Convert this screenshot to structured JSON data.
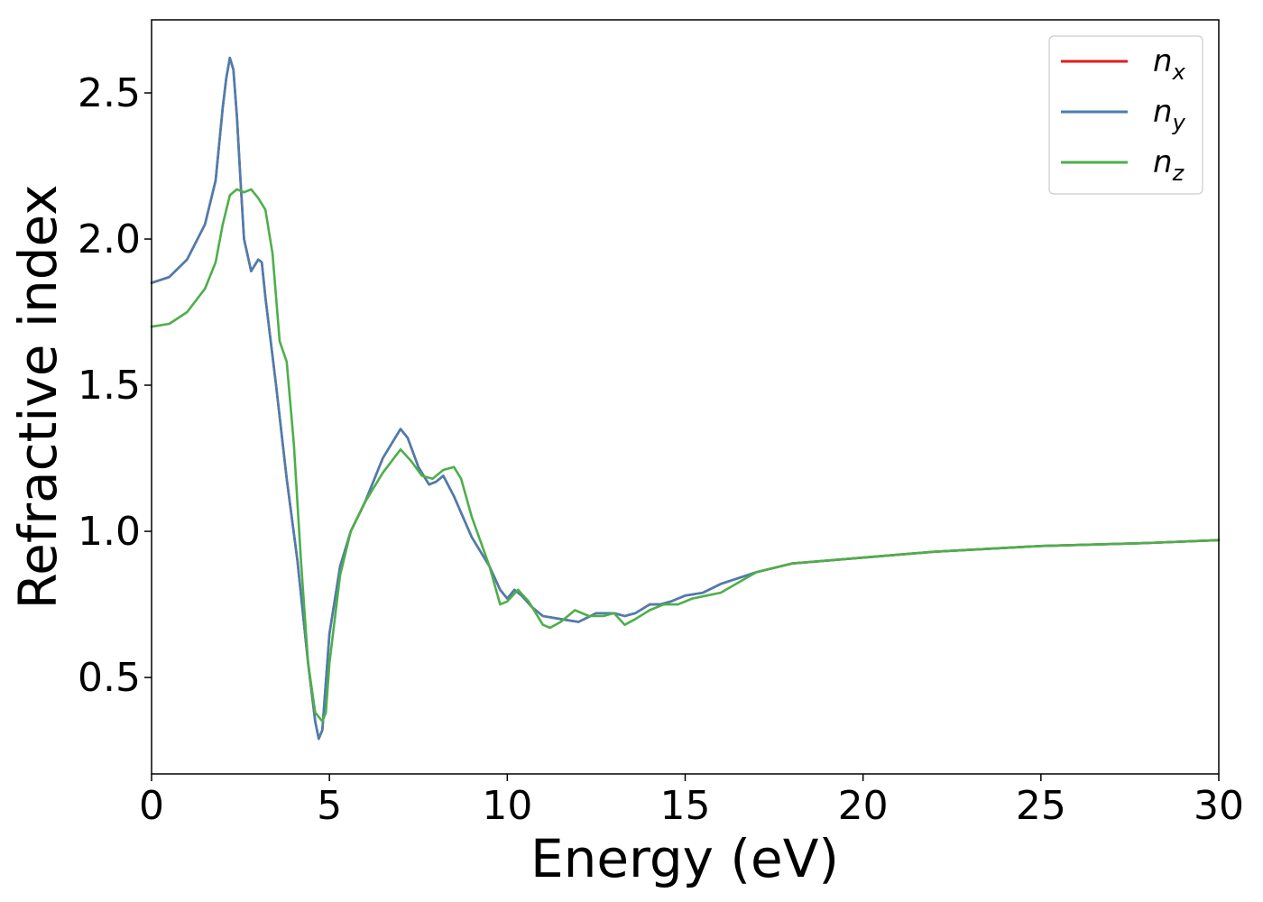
{
  "chart_data": {
    "type": "line",
    "xlabel": "Energy (eV)",
    "ylabel": "Refractive index",
    "xlim": [
      0,
      30
    ],
    "ylim": [
      0.17,
      2.75
    ],
    "xticks": [
      0,
      5,
      10,
      15,
      20,
      25,
      30
    ],
    "xtick_labels": [
      "0",
      "5",
      "10",
      "15",
      "20",
      "25",
      "30"
    ],
    "yticks": [
      0.5,
      1.0,
      1.5,
      2.0,
      2.5
    ],
    "ytick_labels": [
      "0.5",
      "1.0",
      "1.5",
      "2.0",
      "2.5"
    ],
    "grid": false,
    "legend_position": "top-right",
    "series": [
      {
        "name": "n_x",
        "legend_base": "n",
        "legend_sub": "x",
        "color": "#e41a1c",
        "x": [
          0,
          0.5,
          1.0,
          1.5,
          1.8,
          2.0,
          2.1,
          2.2,
          2.3,
          2.4,
          2.5,
          2.6,
          2.8,
          3.0,
          3.1,
          3.2,
          3.5,
          3.8,
          4.1,
          4.4,
          4.6,
          4.7,
          4.8,
          5.0,
          5.3,
          5.6,
          6.0,
          6.5,
          7.0,
          7.2,
          7.5,
          7.8,
          8.0,
          8.2,
          8.5,
          9.0,
          9.5,
          9.8,
          10.0,
          10.2,
          10.4,
          10.7,
          11.0,
          11.5,
          12.0,
          12.5,
          13.0,
          13.3,
          13.6,
          14.0,
          14.3,
          14.6,
          15.0,
          15.5,
          16.0,
          17.0,
          18.0,
          20.0,
          22.0,
          25.0,
          28.0,
          30.0
        ],
        "y": [
          1.85,
          1.87,
          1.93,
          2.05,
          2.2,
          2.45,
          2.55,
          2.62,
          2.58,
          2.42,
          2.2,
          2.0,
          1.89,
          1.93,
          1.92,
          1.8,
          1.5,
          1.18,
          0.9,
          0.55,
          0.35,
          0.29,
          0.32,
          0.65,
          0.88,
          1.0,
          1.1,
          1.25,
          1.35,
          1.32,
          1.22,
          1.16,
          1.17,
          1.19,
          1.12,
          0.98,
          0.88,
          0.8,
          0.77,
          0.8,
          0.78,
          0.74,
          0.71,
          0.7,
          0.69,
          0.72,
          0.72,
          0.71,
          0.72,
          0.75,
          0.75,
          0.76,
          0.78,
          0.79,
          0.82,
          0.86,
          0.89,
          0.91,
          0.93,
          0.95,
          0.96,
          0.97
        ]
      },
      {
        "name": "n_y",
        "legend_base": "n",
        "legend_sub": "y",
        "color": "#4a7eb0",
        "x": [
          0,
          0.5,
          1.0,
          1.5,
          1.8,
          2.0,
          2.1,
          2.2,
          2.3,
          2.4,
          2.5,
          2.6,
          2.8,
          3.0,
          3.1,
          3.2,
          3.5,
          3.8,
          4.1,
          4.4,
          4.6,
          4.7,
          4.8,
          5.0,
          5.3,
          5.6,
          6.0,
          6.5,
          7.0,
          7.2,
          7.5,
          7.8,
          8.0,
          8.2,
          8.5,
          9.0,
          9.5,
          9.8,
          10.0,
          10.2,
          10.4,
          10.7,
          11.0,
          11.5,
          12.0,
          12.5,
          13.0,
          13.3,
          13.6,
          14.0,
          14.3,
          14.6,
          15.0,
          15.5,
          16.0,
          17.0,
          18.0,
          20.0,
          22.0,
          25.0,
          28.0,
          30.0
        ],
        "y": [
          1.85,
          1.87,
          1.93,
          2.05,
          2.2,
          2.45,
          2.55,
          2.62,
          2.58,
          2.42,
          2.2,
          2.0,
          1.89,
          1.93,
          1.92,
          1.8,
          1.5,
          1.18,
          0.9,
          0.55,
          0.35,
          0.29,
          0.32,
          0.65,
          0.88,
          1.0,
          1.1,
          1.25,
          1.35,
          1.32,
          1.22,
          1.16,
          1.17,
          1.19,
          1.12,
          0.98,
          0.88,
          0.8,
          0.77,
          0.8,
          0.78,
          0.74,
          0.71,
          0.7,
          0.69,
          0.72,
          0.72,
          0.71,
          0.72,
          0.75,
          0.75,
          0.76,
          0.78,
          0.79,
          0.82,
          0.86,
          0.89,
          0.91,
          0.93,
          0.95,
          0.96,
          0.97
        ]
      },
      {
        "name": "n_z",
        "legend_base": "n",
        "legend_sub": "z",
        "color": "#4daf4a",
        "x": [
          0,
          0.5,
          1.0,
          1.5,
          1.8,
          2.0,
          2.2,
          2.4,
          2.6,
          2.8,
          3.0,
          3.2,
          3.4,
          3.6,
          3.8,
          4.0,
          4.2,
          4.4,
          4.6,
          4.8,
          4.9,
          5.0,
          5.3,
          5.6,
          6.0,
          6.5,
          7.0,
          7.3,
          7.6,
          7.9,
          8.2,
          8.5,
          8.7,
          9.0,
          9.5,
          9.8,
          10.0,
          10.3,
          10.6,
          11.0,
          11.2,
          11.5,
          11.9,
          12.3,
          12.7,
          13.0,
          13.3,
          13.6,
          14.0,
          14.4,
          14.8,
          15.2,
          15.6,
          16.0,
          17.0,
          18.0,
          20.0,
          22.0,
          25.0,
          28.0,
          30.0
        ],
        "y": [
          1.7,
          1.71,
          1.75,
          1.83,
          1.92,
          2.05,
          2.15,
          2.17,
          2.16,
          2.17,
          2.14,
          2.1,
          1.95,
          1.65,
          1.58,
          1.3,
          0.9,
          0.55,
          0.38,
          0.35,
          0.38,
          0.55,
          0.85,
          1.0,
          1.1,
          1.2,
          1.28,
          1.24,
          1.19,
          1.18,
          1.21,
          1.22,
          1.18,
          1.05,
          0.88,
          0.75,
          0.76,
          0.8,
          0.76,
          0.68,
          0.67,
          0.69,
          0.73,
          0.71,
          0.71,
          0.72,
          0.68,
          0.7,
          0.73,
          0.75,
          0.75,
          0.77,
          0.78,
          0.79,
          0.86,
          0.89,
          0.91,
          0.93,
          0.95,
          0.96,
          0.97
        ]
      }
    ]
  }
}
